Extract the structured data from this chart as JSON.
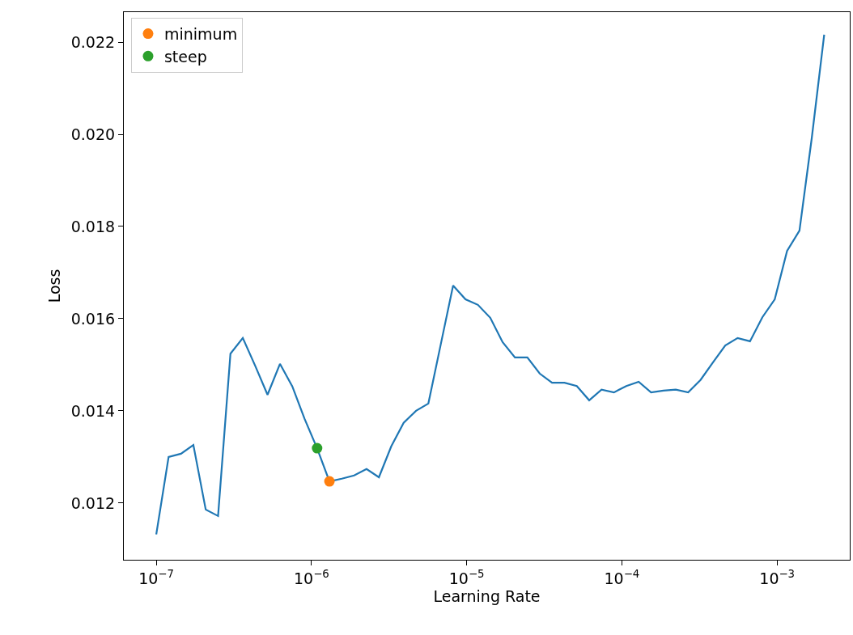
{
  "chart_data": {
    "type": "line",
    "xlabel": "Learning Rate",
    "ylabel": "Loss",
    "log": "x",
    "xlim": [
      6.18e-08,
      0.00294
    ],
    "xticks": [
      {
        "value": 1e-07,
        "label": "10$^{−7}$"
      },
      {
        "value": 1e-06,
        "label": "10$^{−6}$"
      },
      {
        "value": 1e-05,
        "label": "10$^{−5}$"
      },
      {
        "value": 0.0001,
        "label": "10$^{−4}$"
      },
      {
        "value": 0.001,
        "label": "10$^{−3}$"
      }
    ],
    "ylim": [
      0.01077,
      0.02265
    ],
    "yticks": [
      {
        "value": 0.012,
        "label": "0.012"
      },
      {
        "value": 0.014,
        "label": "0.014"
      },
      {
        "value": 0.016,
        "label": "0.016"
      },
      {
        "value": 0.018,
        "label": "0.018"
      },
      {
        "value": 0.02,
        "label": "0.020"
      },
      {
        "value": 0.022,
        "label": "0.022"
      }
    ],
    "grid": false,
    "legend": "top left",
    "series": [
      {
        "color": "#1f77b4",
        "marker": "none",
        "x": [
          1e-07,
          1.201e-07,
          1.443e-07,
          1.734e-07,
          2.083e-07,
          2.502e-07,
          3.006e-07,
          3.611e-07,
          4.338e-07,
          5.211e-07,
          6.266e-07,
          7.527e-07,
          9.046e-07,
          1.087e-06,
          1.306e-06,
          1.569e-06,
          1.884e-06,
          2.264e-06,
          2.72e-06,
          3.267e-06,
          3.926e-06,
          4.716e-06,
          5.665e-06,
          6.806e-06,
          8.178e-06,
          9.829e-06,
          1.181e-05,
          1.419e-05,
          1.704e-05,
          2.047e-05,
          2.46e-05,
          2.955e-05,
          3.55e-05,
          4.265e-05,
          5.124e-05,
          6.158e-05,
          7.396e-05,
          8.889e-05,
          0.0001068,
          0.0001283,
          0.0001542,
          0.0001852,
          0.0002225,
          0.0002674,
          0.0003212,
          0.0003859,
          0.0004636,
          0.0005569,
          0.0006691,
          0.0008039,
          0.000966,
          0.00116,
          0.001394,
          0.001675,
          0.002012
        ],
        "values": [
          0.01132,
          0.013,
          0.01307,
          0.01326,
          0.01186,
          0.01172,
          0.01524,
          0.01558,
          0.01498,
          0.01435,
          0.01502,
          0.01453,
          0.01382,
          0.01319,
          0.01247,
          0.01253,
          0.0126,
          0.01274,
          0.01256,
          0.01323,
          0.01374,
          0.014,
          0.01416,
          0.01544,
          0.01672,
          0.01642,
          0.0163,
          0.01602,
          0.01549,
          0.01516,
          0.01516,
          0.01481,
          0.01461,
          0.01461,
          0.01454,
          0.01423,
          0.01446,
          0.0144,
          0.01454,
          0.01463,
          0.0144,
          0.01444,
          0.01446,
          0.0144,
          0.01467,
          0.01505,
          0.01542,
          0.01558,
          0.01551,
          0.01603,
          0.01642,
          0.01747,
          0.01791,
          0.01993,
          0.02216
        ]
      },
      {
        "type": "scatter",
        "name": "minimum",
        "color": "#ff7f0e",
        "marker": "circle",
        "x": [
          1.306e-06
        ],
        "values": [
          0.01247
        ]
      },
      {
        "type": "scatter",
        "name": "steep",
        "color": "#2ca02c",
        "marker": "circle",
        "x": [
          1.087e-06
        ],
        "values": [
          0.01319
        ]
      }
    ]
  }
}
